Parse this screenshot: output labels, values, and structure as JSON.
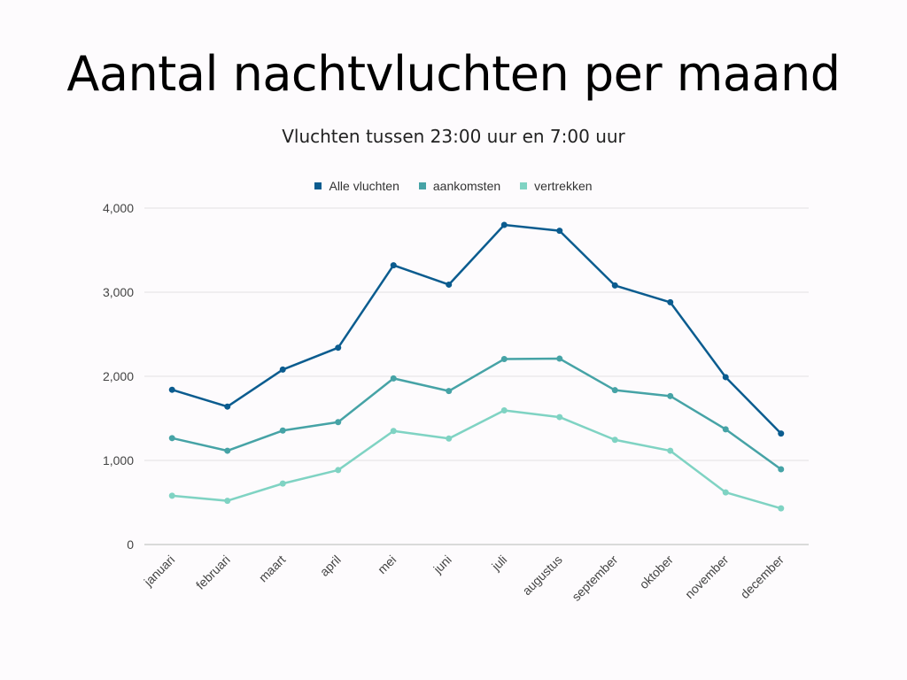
{
  "chart_data": {
    "type": "line",
    "title": "Aantal nachtvluchten per maand",
    "subtitle": "Vluchten tussen 23:00 uur en 7:00 uur",
    "categories": [
      "januari",
      "februari",
      "maart",
      "april",
      "mei",
      "juni",
      "juli",
      "augustus",
      "september",
      "oktober",
      "november",
      "december"
    ],
    "series": [
      {
        "name": "Alle vluchten",
        "color": "#0b5c8f",
        "values": [
          1840,
          1640,
          2080,
          2340,
          3320,
          3090,
          3800,
          3730,
          3080,
          2880,
          1990,
          1320
        ]
      },
      {
        "name": "aankomsten",
        "color": "#46a3a6",
        "values": [
          1265,
          1115,
          1355,
          1455,
          1975,
          1825,
          2205,
          2210,
          1835,
          1765,
          1370,
          895
        ]
      },
      {
        "name": "vertrekken",
        "color": "#7fd3c3",
        "values": [
          580,
          520,
          725,
          885,
          1350,
          1260,
          1595,
          1515,
          1245,
          1115,
          620,
          430
        ]
      }
    ],
    "yticks": [
      "0",
      "1,000",
      "2,000",
      "3,000",
      "4,000"
    ],
    "ylim": [
      0,
      4000
    ],
    "grid": true,
    "legend": "top"
  }
}
